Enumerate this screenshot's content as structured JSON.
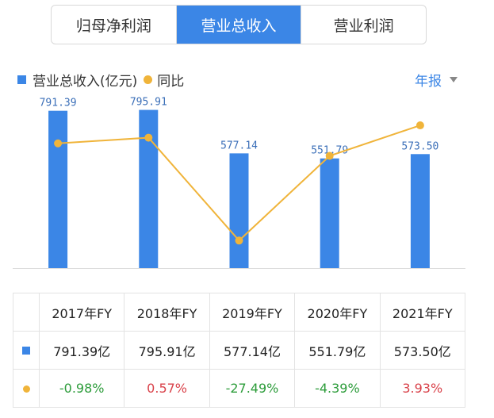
{
  "tabs": [
    {
      "label": "归母净利润",
      "active": false
    },
    {
      "label": "营业总收入",
      "active": true
    },
    {
      "label": "营业利润",
      "active": false
    }
  ],
  "legend": {
    "bar_label": "营业总收入(亿元)",
    "line_label": "同比"
  },
  "period_selector": {
    "label": "年报"
  },
  "colors": {
    "bar": "#3b86e6",
    "line": "#f0b43a",
    "positive": "#d9424a",
    "negative": "#2c9c3a"
  },
  "chart_data": {
    "type": "bar",
    "categories": [
      "2017年FY",
      "2018年FY",
      "2019年FY",
      "2020年FY",
      "2021年FY"
    ],
    "series": [
      {
        "name": "营业总收入(亿元)",
        "type": "bar",
        "values": [
          791.39,
          795.91,
          577.14,
          551.79,
          573.5
        ],
        "labels": [
          "791.39",
          "795.91",
          "577.14",
          "551.79",
          "573.50"
        ]
      },
      {
        "name": "同比",
        "type": "line",
        "values": [
          -0.98,
          0.57,
          -27.49,
          -4.39,
          3.93
        ]
      }
    ],
    "bar_ylim": [
      0,
      830
    ],
    "line_ylim": [
      -35,
      10
    ]
  },
  "table": {
    "headers": [
      "2017年FY",
      "2018年FY",
      "2019年FY",
      "2020年FY",
      "2021年FY"
    ],
    "revenue_row": [
      "791.39亿",
      "795.91亿",
      "577.14亿",
      "551.79亿",
      "573.50亿"
    ],
    "yoy_row": [
      "-0.98%",
      "0.57%",
      "-27.49%",
      "-4.39%",
      "3.93%"
    ]
  }
}
